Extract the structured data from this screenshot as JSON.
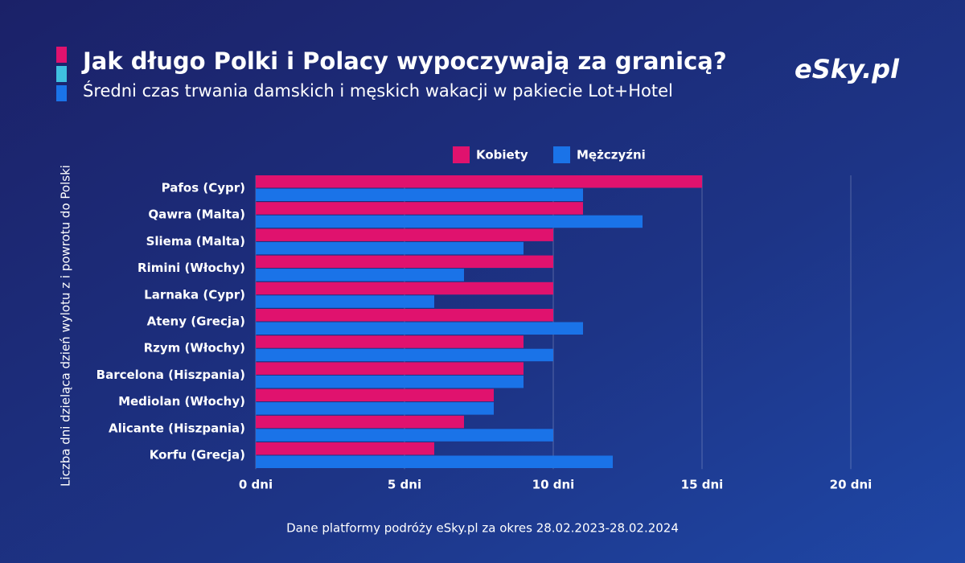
{
  "chart_data": {
    "type": "hbar",
    "title": "Jak długo Polki i Polacy wypoczywają za granicą?",
    "subtitle": "Średni czas trwania damskich i męskich wakacji w pakiecie Lot+Hotel",
    "logo": "eSky.pl",
    "y_label": "Liczba dni dzieląca dzień wylotu z i powrotu do Polski",
    "note": "Dane platformy podróży eSky.pl za okres 28.02.2023-28.02.2024",
    "categories": [
      "Pafos (Cypr)",
      "Qawra (Malta)",
      "Sliema (Malta)",
      "Rimini (Włochy)",
      "Larnaka (Cypr)",
      "Ateny (Grecja)",
      "Rzym (Włochy)",
      "Barcelona (Hiszpania)",
      "Mediolan (Włochy)",
      "Alicante (Hiszpania)",
      "Korfu (Grecja)"
    ],
    "series": [
      {
        "name": "Kobiety",
        "color": "#e0126e",
        "values": [
          15,
          11,
          10,
          10,
          10,
          10,
          9,
          9,
          8,
          7,
          6
        ]
      },
      {
        "name": "Mężczyźni",
        "color": "#1a73e8",
        "values": [
          11,
          13,
          9,
          7,
          6,
          11,
          10,
          9,
          8,
          10,
          12
        ]
      }
    ],
    "xlim": [
      0,
      20
    ],
    "xticks": [
      {
        "value": 0,
        "label": "0 dni"
      },
      {
        "value": 5,
        "label": "5 dni"
      },
      {
        "value": 10,
        "label": "10 dni"
      },
      {
        "value": 15,
        "label": "15 dni"
      },
      {
        "value": 20,
        "label": "20 dni"
      }
    ],
    "grid": true
  }
}
